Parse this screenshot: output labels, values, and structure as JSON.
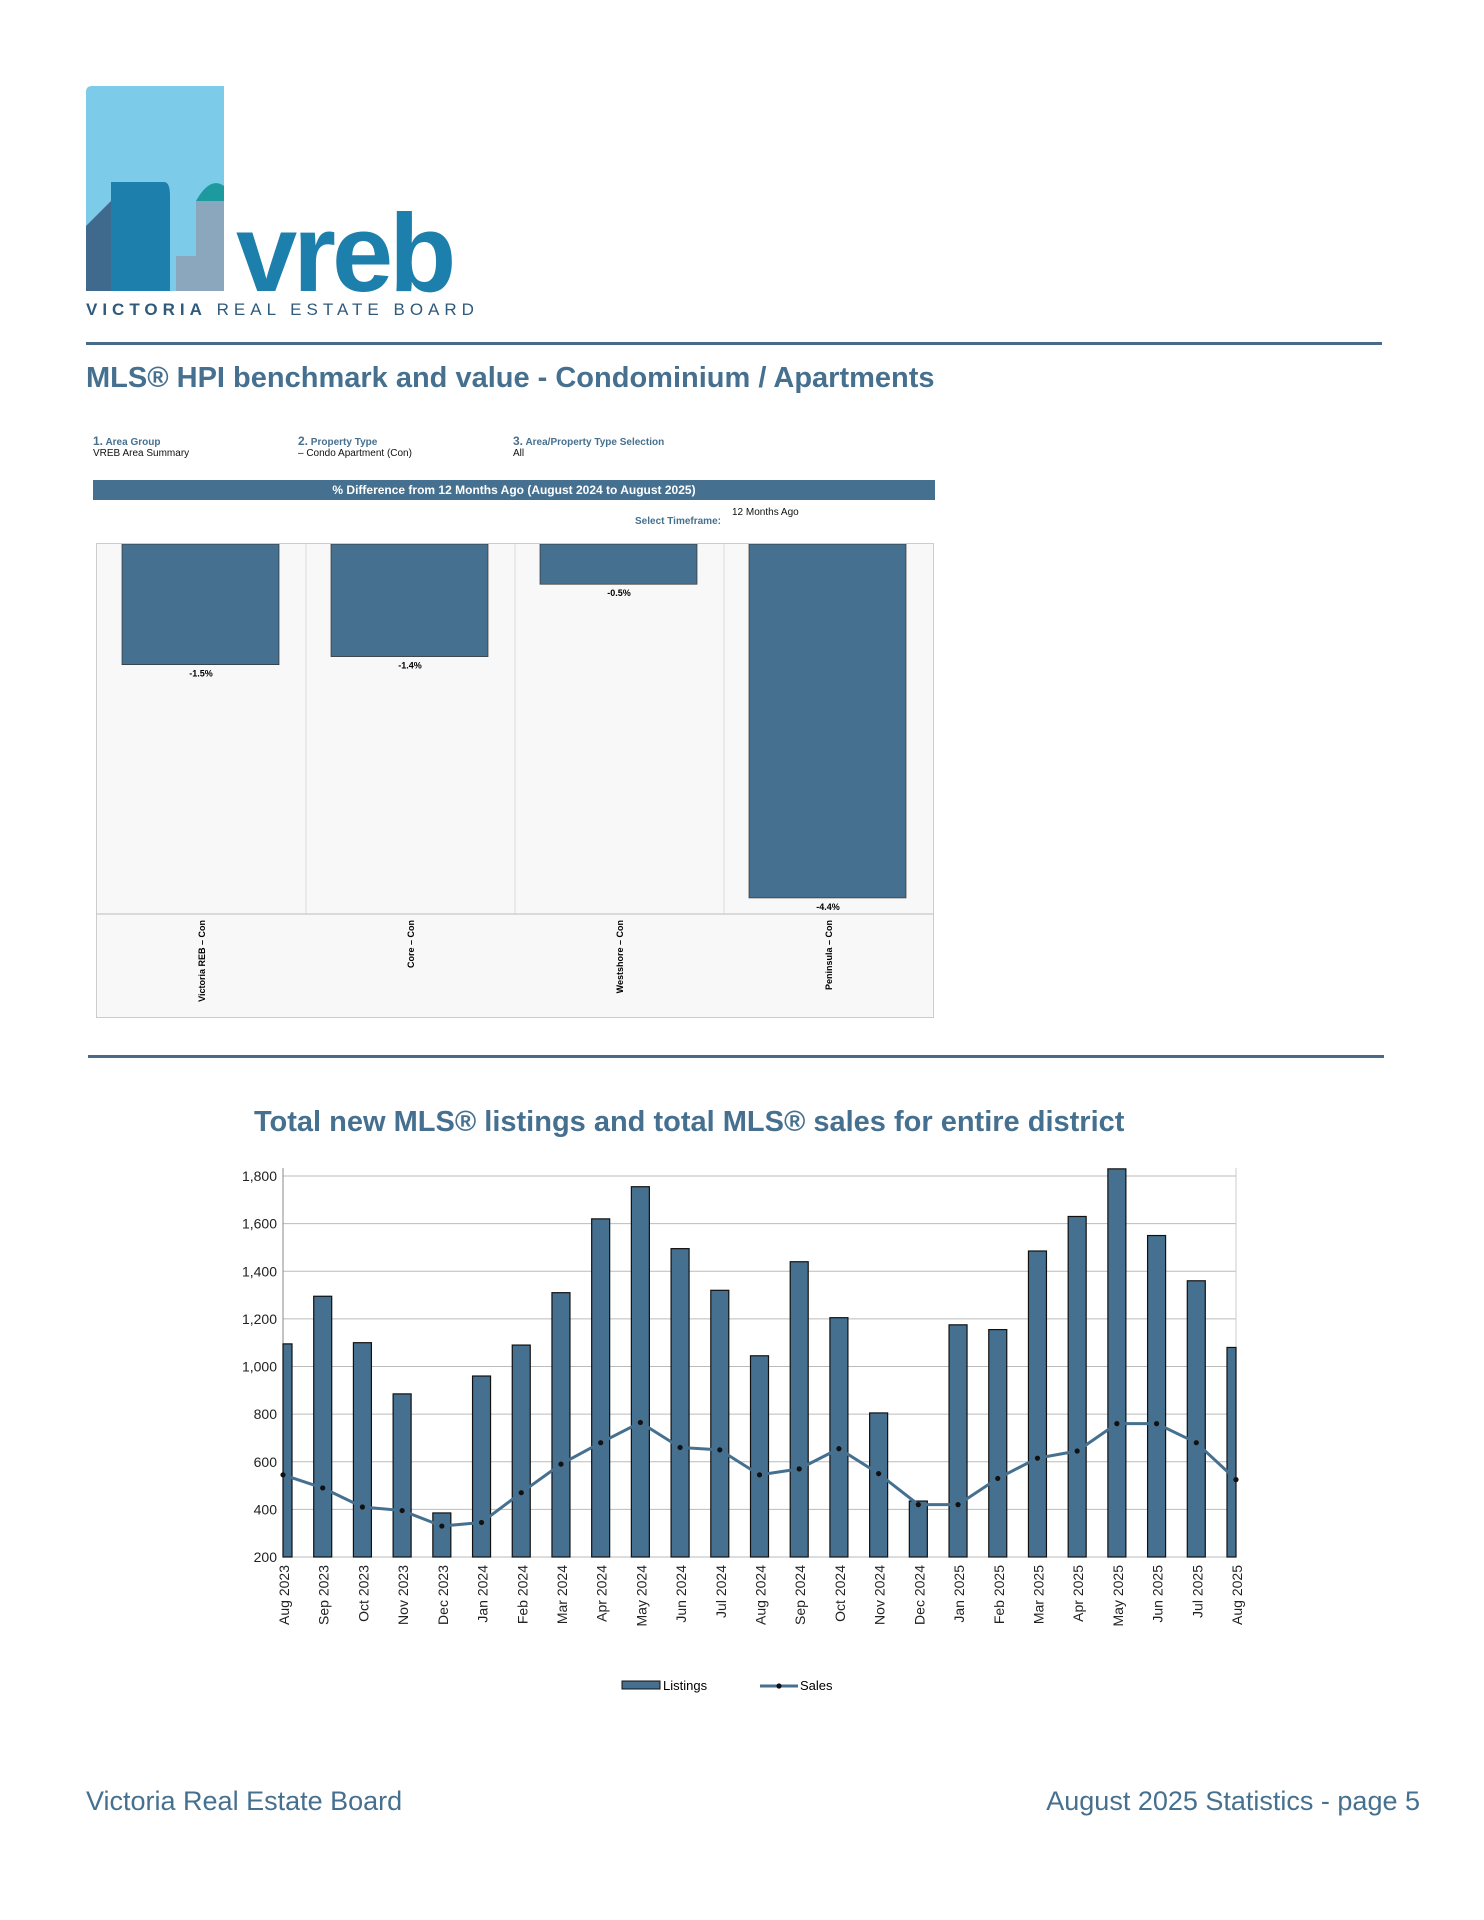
{
  "logo": {
    "wordmark": "vreb",
    "tagline_bold": "VICTORIA",
    "tagline": "REAL ESTATE BOARD"
  },
  "section1": {
    "title": "MLS® HPI benchmark and value - Condominium / Apartments",
    "filters": [
      {
        "num": "1.",
        "label": "Area Group",
        "value": "VREB Area Summary"
      },
      {
        "num": "2.",
        "label": "Property Type",
        "value": "– Condo Apartment (Con)"
      },
      {
        "num": "3.",
        "label": "Area/Property Type Selection",
        "value": "All"
      }
    ],
    "banner": "% Difference from 12 Months Ago (August 2024 to August 2025)",
    "timeframe_label": "Select Timeframe:",
    "timeframe_value": "12 Months Ago"
  },
  "section2": {
    "title": "Total new MLS® listings and total MLS® sales for entire district"
  },
  "chart_data": [
    {
      "type": "bar",
      "title": "% Difference from 12 Months Ago (August 2024 to August 2025)",
      "categories": [
        "Victoria REB – Con",
        "Core – Con",
        "Westshore – Con",
        "Peninsula – Con"
      ],
      "values": [
        -1.5,
        -1.4,
        -0.5,
        -4.4
      ],
      "labels": [
        "-1.5%",
        "-1.4%",
        "-0.5%",
        "-4.4%"
      ],
      "color": "#46708f"
    },
    {
      "type": "bar",
      "title": "Total new MLS® listings and total MLS® sales for entire district",
      "ylim": [
        200,
        1800
      ],
      "yticks": [
        "200",
        "400",
        "600",
        "800",
        "1,000",
        "1,200",
        "1,400",
        "1,600",
        "1,800"
      ],
      "categories": [
        "Aug 2023",
        "Sep 2023",
        "Oct 2023",
        "Nov 2023",
        "Dec 2023",
        "Jan 2024",
        "Feb 2024",
        "Mar 2024",
        "Apr 2024",
        "May 2024",
        "Jun 2024",
        "Jul 2024",
        "Aug 2024",
        "Sep 2024",
        "Oct 2024",
        "Nov 2024",
        "Dec 2024",
        "Jan 2025",
        "Feb 2025",
        "Mar 2025",
        "Apr 2025",
        "May 2025",
        "Jun 2025",
        "Jul 2025",
        "Aug 2025"
      ],
      "series": [
        {
          "name": "Listings",
          "type": "bar",
          "color": "#46708f",
          "values": [
            1095,
            1295,
            1100,
            885,
            385,
            960,
            1090,
            1310,
            1620,
            1755,
            1495,
            1320,
            1045,
            1440,
            1205,
            805,
            435,
            1175,
            1155,
            1485,
            1630,
            1830,
            1550,
            1360,
            1080
          ]
        },
        {
          "name": "Sales",
          "type": "line",
          "color": "#46708f",
          "values": [
            545,
            490,
            410,
            395,
            330,
            345,
            470,
            590,
            680,
            765,
            660,
            650,
            545,
            570,
            655,
            550,
            420,
            420,
            530,
            615,
            645,
            760,
            760,
            680,
            525
          ]
        }
      ],
      "legend": "bottom"
    }
  ],
  "footer": {
    "left": "Victoria Real Estate Board",
    "right": "August 2025 Statistics - page 5"
  }
}
